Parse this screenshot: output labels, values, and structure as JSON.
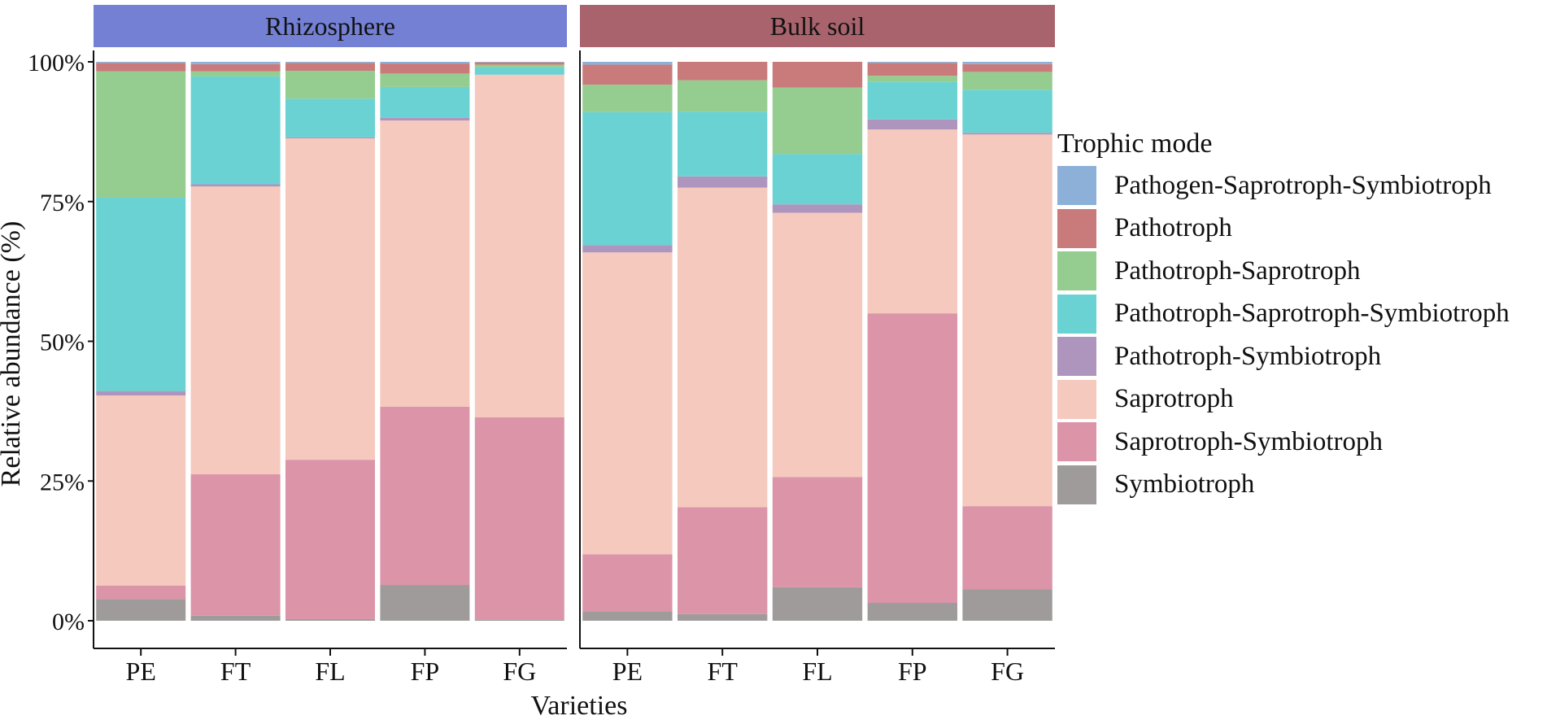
{
  "chart_data": {
    "type": "bar",
    "stacked": true,
    "percent": true,
    "xlabel": "Varieties",
    "ylabel": "Relative abundance (%)",
    "ylim": [
      0,
      100
    ],
    "yticks": [
      0,
      25,
      50,
      75,
      100
    ],
    "ytick_labels": [
      "0%",
      "25%",
      "50%",
      "75%",
      "100%"
    ],
    "legend_title": "Trophic mode",
    "legend_position": "right",
    "panels": [
      {
        "name": "Rhizosphere",
        "color": "#7480d4",
        "categories": [
          "PE",
          "FT",
          "FL",
          "FP",
          "FG"
        ],
        "series": [
          {
            "name": "Symbiotroph",
            "values": [
              3.9,
              0.9,
              0.3,
              6.4,
              0.2
            ]
          },
          {
            "name": "Saprotroph-Symbiotroph",
            "values": [
              2.4,
              25.3,
              28.5,
              31.9,
              36.2
            ]
          },
          {
            "name": "Saprotroph",
            "values": [
              34.0,
              51.5,
              57.5,
              51.2,
              61.3
            ]
          },
          {
            "name": "Pathotroph-Symbiotroph",
            "values": [
              0.8,
              0.4,
              0.2,
              0.5,
              0.0
            ]
          },
          {
            "name": "Pathotroph-Saprotroph-Symbiotroph",
            "values": [
              34.6,
              19.3,
              6.9,
              5.5,
              1.3
            ]
          },
          {
            "name": "Pathotroph-Saprotroph",
            "values": [
              22.6,
              0.9,
              5.0,
              2.4,
              0.5
            ]
          },
          {
            "name": "Pathotroph",
            "values": [
              1.5,
              1.3,
              1.4,
              1.8,
              0.4
            ]
          },
          {
            "name": "Pathogen-Saprotroph-Symbiotroph",
            "values": [
              0.2,
              0.4,
              0.2,
              0.3,
              0.1
            ]
          }
        ]
      },
      {
        "name": "Bulk soil",
        "color": "#a8636c",
        "categories": [
          "PE",
          "FT",
          "FL",
          "FP",
          "FG"
        ],
        "series": [
          {
            "name": "Symbiotroph",
            "values": [
              1.6,
              1.2,
              6.0,
              3.2,
              5.6
            ]
          },
          {
            "name": "Saprotroph-Symbiotroph",
            "values": [
              10.3,
              19.1,
              19.7,
              51.8,
              14.9
            ]
          },
          {
            "name": "Saprotroph",
            "values": [
              54.0,
              57.2,
              47.3,
              32.9,
              66.5
            ]
          },
          {
            "name": "Pathotroph-Symbiotroph",
            "values": [
              1.3,
              2.0,
              1.5,
              1.8,
              0.3
            ]
          },
          {
            "name": "Pathotroph-Saprotroph-Symbiotroph",
            "values": [
              23.8,
              11.6,
              9.0,
              6.7,
              7.7
            ]
          },
          {
            "name": "Pathotroph-Saprotroph",
            "values": [
              4.9,
              5.6,
              11.9,
              1.1,
              3.2
            ]
          },
          {
            "name": "Pathotroph",
            "values": [
              3.6,
              3.3,
              4.6,
              2.3,
              1.4
            ]
          },
          {
            "name": "Pathogen-Saprotroph-Symbiotroph",
            "values": [
              0.5,
              0.0,
              0.0,
              0.2,
              0.4
            ]
          }
        ]
      }
    ],
    "legend": [
      {
        "name": "Pathogen-Saprotroph-Symbiotroph",
        "color": "#8db0d8"
      },
      {
        "name": "Pathotroph",
        "color": "#c97b7b"
      },
      {
        "name": "Pathotroph-Saprotroph",
        "color": "#95cc8f"
      },
      {
        "name": "Pathotroph-Saprotroph-Symbiotroph",
        "color": "#6ad2d2"
      },
      {
        "name": "Pathotroph-Symbiotroph",
        "color": "#ae95bd"
      },
      {
        "name": "Saprotroph",
        "color": "#f5c9bd"
      },
      {
        "name": "Saprotroph-Symbiotroph",
        "color": "#db94a8"
      },
      {
        "name": "Symbiotroph",
        "color": "#9f9b9b"
      }
    ]
  }
}
